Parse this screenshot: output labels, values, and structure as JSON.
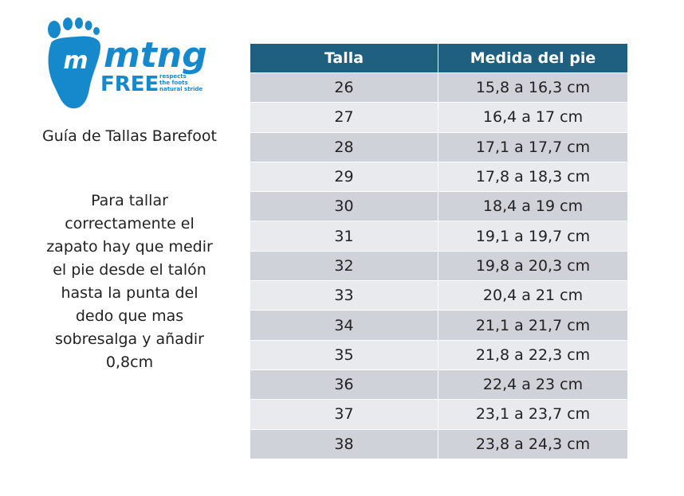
{
  "logo": {
    "mark_letter": "m",
    "brand": "mtng",
    "sub_brand": "FREE",
    "tagline": [
      "respects",
      "the foots",
      "natural stride"
    ],
    "color": "#1689cc"
  },
  "subtitle": "Guía de Tallas Barefoot",
  "instructions": "Para tallar correctamente el zapato hay que medir el pie desde el talón hasta la punta del dedo que mas sobresalga y añadir 0,8cm",
  "colors": {
    "header_bg": "#1f5f7f",
    "row_dark": "#cfd3d9",
    "row_light": "#e8eaed",
    "brand_blue": "#1689cc"
  },
  "table": {
    "headers": [
      "Talla",
      "Medida del pie"
    ],
    "rows": [
      [
        "26",
        "15,8 a 16,3 cm"
      ],
      [
        "27",
        "16,4 a 17 cm"
      ],
      [
        "28",
        "17,1 a 17,7 cm"
      ],
      [
        "29",
        "17,8 a 18,3 cm"
      ],
      [
        "30",
        "18,4 a 19 cm"
      ],
      [
        "31",
        "19,1 a 19,7 cm"
      ],
      [
        "32",
        "19,8 a 20,3 cm"
      ],
      [
        "33",
        "20,4 a 21 cm"
      ],
      [
        "34",
        "21,1 a 21,7 cm"
      ],
      [
        "35",
        "21,8 a 22,3 cm"
      ],
      [
        "36",
        "22,4 a 23 cm"
      ],
      [
        "37",
        "23,1 a 23,7 cm"
      ],
      [
        "38",
        "23,8 a 24,3 cm"
      ]
    ]
  }
}
